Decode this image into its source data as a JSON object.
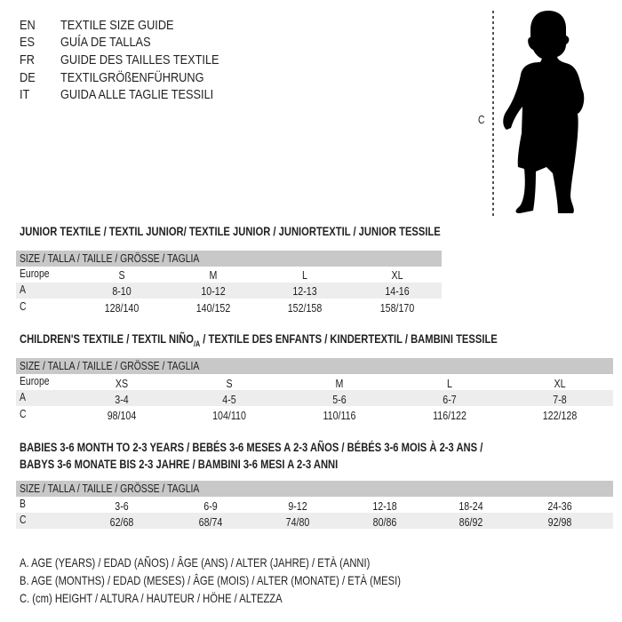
{
  "languages": [
    {
      "code": "EN",
      "title": "TEXTILE SIZE GUIDE"
    },
    {
      "code": "ES",
      "title": "GUÍA DE TALLAS"
    },
    {
      "code": "FR",
      "title": "GUIDE DES TAILLES TEXTILE"
    },
    {
      "code": "DE",
      "title": "TEXTILGRÖßENFÜHRUNG"
    },
    {
      "code": "IT",
      "title": "GUIDA ALLE TAGLIE TESSILI"
    }
  ],
  "figure": {
    "measure_label": "C",
    "icon": "child-silhouette"
  },
  "junior": {
    "title": "JUNIOR TEXTILE / TEXTIL JUNIOR/ TEXTILE JUNIOR / JUNIORTEXTIL / JUNIOR TESSILE",
    "header": "SIZE / TALLA / TAILLE / GRÖSSE / TAGLIA",
    "rows": [
      {
        "label": "Europe",
        "values": [
          "S",
          "M",
          "L",
          "XL"
        ]
      },
      {
        "label": "A",
        "values": [
          "8-10",
          "10-12",
          "12-13",
          "14-16"
        ]
      },
      {
        "label": "C",
        "values": [
          "128/140",
          "140/152",
          "152/158",
          "158/170"
        ]
      }
    ]
  },
  "children": {
    "title": "CHILDREN'S TEXTILE / TEXTIL NIÑO",
    "title_sub": "/A",
    "title_rest": " / TEXTILE DES ENFANTS / KINDERTEXTIL / BAMBINI TESSILE",
    "header": "SIZE / TALLA / TAILLE / GRÖSSE / TAGLIA",
    "rows": [
      {
        "label": "Europe",
        "values": [
          "XS",
          "S",
          "M",
          "L",
          "XL"
        ]
      },
      {
        "label": "A",
        "values": [
          "3-4",
          "4-5",
          "5-6",
          "6-7",
          "7-8"
        ]
      },
      {
        "label": "C",
        "values": [
          "98/104",
          "104/110",
          "110/116",
          "116/122",
          "122/128"
        ]
      }
    ]
  },
  "babies": {
    "title_line1": "BABIES 3-6 MONTH TO 2-3 YEARS / BEBÉS 3-6 MESES A 2-3 AÑOS / BÉBÉS 3-6 MOIS À 2-3 ANS /",
    "title_line2": "BABYS 3-6 MONATE BIS 2-3 JAHRE / BAMBINI 3-6 MESI A 2-3 ANNI",
    "header": "SIZE / TALLA / TAILLE / GRÖSSE / TAGLIA",
    "rows": [
      {
        "label": "B",
        "values": [
          "3-6",
          "6-9",
          "9-12",
          "12-18",
          "18-24",
          "24-36"
        ]
      },
      {
        "label": "C",
        "values": [
          "62/68",
          "68/74",
          "74/80",
          "80/86",
          "86/92",
          "92/98"
        ]
      }
    ]
  },
  "legend": [
    "A. AGE (YEARS) / EDAD (AÑOS) / ÂGE (ANS) / ALTER (JAHRE) / ETÀ (ANNI)",
    "B. AGE (MONTHS) / EDAD (MESES) / ÂGE (MOIS) / ALTER (MONATE) / ETÀ (MESI)",
    "C. (cm) HEIGHT / ALTURA / HAUTEUR / HÖHE / ALTEZZA"
  ],
  "colors": {
    "header_bar": "#c8c8c8",
    "row_shade": "#ededed"
  }
}
